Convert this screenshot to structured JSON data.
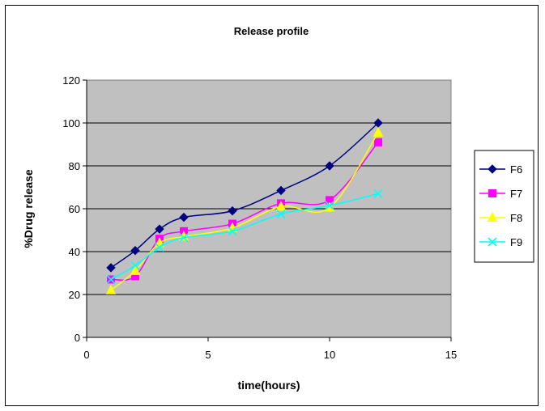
{
  "chart_data": {
    "type": "line",
    "title": "Release profile",
    "xlabel": "time(hours)",
    "ylabel": "%Drug release",
    "xlim": [
      0,
      15
    ],
    "ylim": [
      0,
      120
    ],
    "xticks": [
      0,
      5,
      10,
      15
    ],
    "yticks": [
      0,
      20,
      40,
      60,
      80,
      100,
      120
    ],
    "grid": "horizontal",
    "plot_background": "#c0c0c0",
    "legend_position": "right",
    "x": [
      1,
      2,
      3,
      4,
      6,
      8,
      10,
      12
    ],
    "series": [
      {
        "name": "F6",
        "color": "#000080",
        "marker": "diamond",
        "values": [
          32.5,
          40.5,
          50.5,
          56,
          59,
          68.5,
          80,
          100
        ]
      },
      {
        "name": "F7",
        "color": "#ff00ff",
        "marker": "square",
        "values": [
          27,
          28.5,
          46,
          49.5,
          53,
          62.5,
          64,
          91
        ]
      },
      {
        "name": "F8",
        "color": "#ffff00",
        "marker": "triangle",
        "values": [
          22,
          31,
          44,
          47,
          51,
          61,
          60.5,
          95.5
        ]
      },
      {
        "name": "F9",
        "color": "#00ffff",
        "marker": "x",
        "values": [
          27,
          33.5,
          42,
          46.5,
          49.5,
          57.5,
          61.5,
          67
        ]
      }
    ]
  }
}
